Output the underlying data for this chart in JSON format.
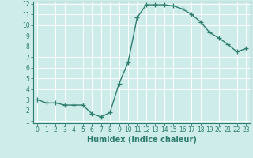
{
  "x": [
    0,
    1,
    2,
    3,
    4,
    5,
    6,
    7,
    8,
    9,
    10,
    11,
    12,
    13,
    14,
    15,
    16,
    17,
    18,
    19,
    20,
    21,
    22,
    23
  ],
  "y": [
    3.0,
    2.7,
    2.7,
    2.5,
    2.5,
    2.5,
    1.7,
    1.4,
    1.8,
    4.5,
    6.5,
    10.7,
    11.9,
    11.9,
    11.9,
    11.8,
    11.5,
    11.0,
    10.3,
    9.3,
    8.8,
    8.2,
    7.5,
    7.8
  ],
  "line_color": "#2e7d6e",
  "marker": "+",
  "markersize": 4,
  "linewidth": 1.0,
  "bg_color": "#cdecea",
  "grid_color": "#b0d8d5",
  "xlabel": "Humidex (Indice chaleur)",
  "xlim": [
    -0.5,
    23.5
  ],
  "ylim": [
    0.8,
    12.2
  ],
  "xticks": [
    0,
    1,
    2,
    3,
    4,
    5,
    6,
    7,
    8,
    9,
    10,
    11,
    12,
    13,
    14,
    15,
    16,
    17,
    18,
    19,
    20,
    21,
    22,
    23
  ],
  "yticks": [
    1,
    2,
    3,
    4,
    5,
    6,
    7,
    8,
    9,
    10,
    11,
    12
  ],
  "tick_label_fontsize": 5.5,
  "xlabel_fontsize": 7,
  "tick_color": "#2e7d6e",
  "axis_color": "#2e7d6e"
}
